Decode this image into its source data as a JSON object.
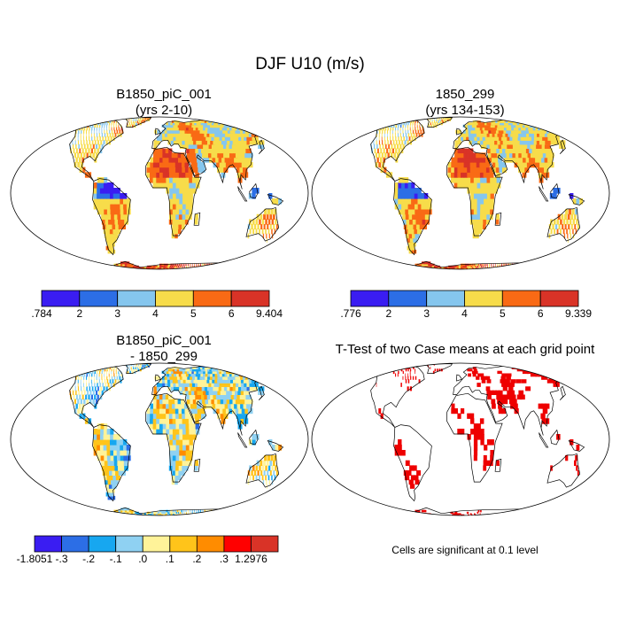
{
  "figure": {
    "title": "DJF U10 (m/s)"
  },
  "panels": [
    {
      "id": "case1",
      "title_line1": "B1850_piC_001",
      "title_line2": "(yrs 2-10)"
    },
    {
      "id": "case2",
      "title_line1": "1850_299",
      "title_line2": "(yrs 134-153)"
    },
    {
      "id": "diff",
      "title_line1": "B1850_piC_001",
      "title_line2": "- 1850_299"
    },
    {
      "id": "ttest",
      "title_line1": "T-Test of two Case means at each grid point",
      "title_line2": ""
    }
  ],
  "colorbars": {
    "case1": {
      "colors": [
        "#3a1df2",
        "#2c6ee6",
        "#85c6ee",
        "#f7dc4a",
        "#f96a15",
        "#d93327"
      ],
      "labels": [
        ".784",
        "2",
        "3",
        "4",
        "5",
        "6",
        "9.404"
      ]
    },
    "case2": {
      "colors": [
        "#3a1df2",
        "#2c6ee6",
        "#85c6ee",
        "#f7dc4a",
        "#f96a15",
        "#d93327"
      ],
      "labels": [
        ".776",
        "2",
        "3",
        "4",
        "5",
        "6",
        "9.339"
      ]
    },
    "diff": {
      "colors": [
        "#3a1df2",
        "#2c6ee6",
        "#17a7f0",
        "#8fd1f2",
        "#fff399",
        "#ffc41a",
        "#ff8c00",
        "#ff0000",
        "#d93327"
      ],
      "labels": [
        "-1.8051",
        "-.3",
        "-.2",
        "-.1",
        ".0",
        ".1",
        ".2",
        ".3",
        "1.2976"
      ]
    }
  },
  "ttest_note": "Cells are significant at 0.1 level"
}
